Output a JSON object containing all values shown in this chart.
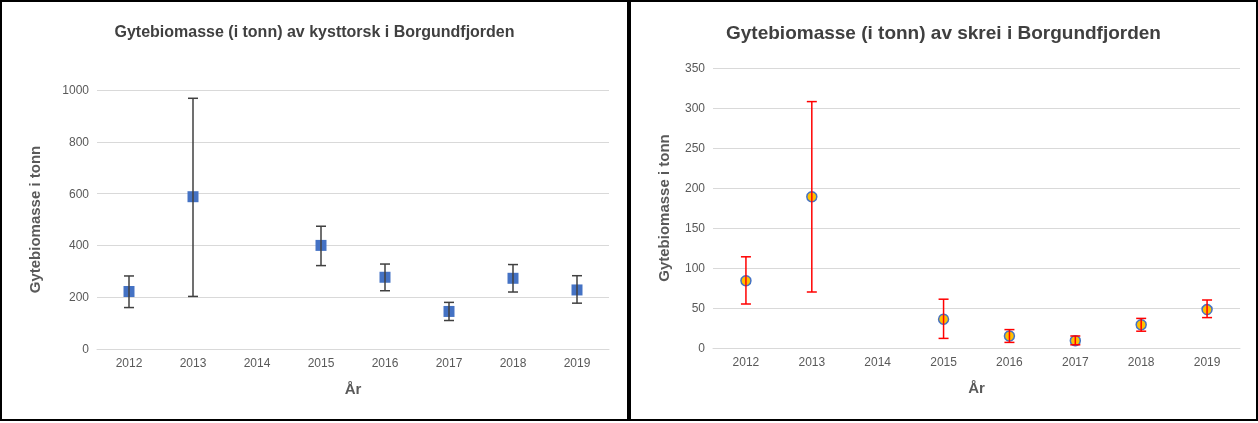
{
  "chart_data": [
    {
      "type": "scatter",
      "title": "Gytebiomasse (i tonn) av kysttorsk i Borgundfjorden",
      "xlabel": "År",
      "ylabel": "Gytebiomasse i tonn",
      "categories": [
        "2012",
        "2013",
        "2014",
        "2015",
        "2016",
        "2017",
        "2018",
        "2019"
      ],
      "values": [
        222,
        588,
        null,
        400,
        277,
        145,
        273,
        228
      ],
      "errors": [
        [
          160,
          282
        ],
        [
          203,
          968
        ],
        null,
        [
          322,
          474
        ],
        [
          225,
          328
        ],
        [
          110,
          180
        ],
        [
          220,
          326
        ],
        [
          177,
          283
        ]
      ],
      "color": "#4472c4",
      "marker": "square",
      "ylim": [
        0,
        1000
      ],
      "yticks": [
        0,
        200,
        400,
        600,
        800,
        1000
      ],
      "grid": "y"
    },
    {
      "type": "scatter",
      "title": "Gytebiomasse (i tonn) av skrei i Borgundfjorden",
      "xlabel": "År",
      "ylabel": "Gytebiomasse i tonn",
      "categories": [
        "2012",
        "2013",
        "2014",
        "2015",
        "2016",
        "2017",
        "2018",
        "2019"
      ],
      "values": [
        84,
        189,
        null,
        36,
        15,
        9,
        29,
        48
      ],
      "errors": [
        [
          55,
          114
        ],
        [
          70,
          308
        ],
        null,
        [
          12,
          61
        ],
        [
          7,
          23
        ],
        [
          4,
          15
        ],
        [
          21,
          37
        ],
        [
          38,
          60
        ]
      ],
      "color": "#ffc000",
      "marker": "circle",
      "ylim": [
        0,
        350
      ],
      "yticks": [
        0,
        50,
        100,
        150,
        200,
        250,
        300,
        350
      ],
      "grid": "y"
    }
  ]
}
